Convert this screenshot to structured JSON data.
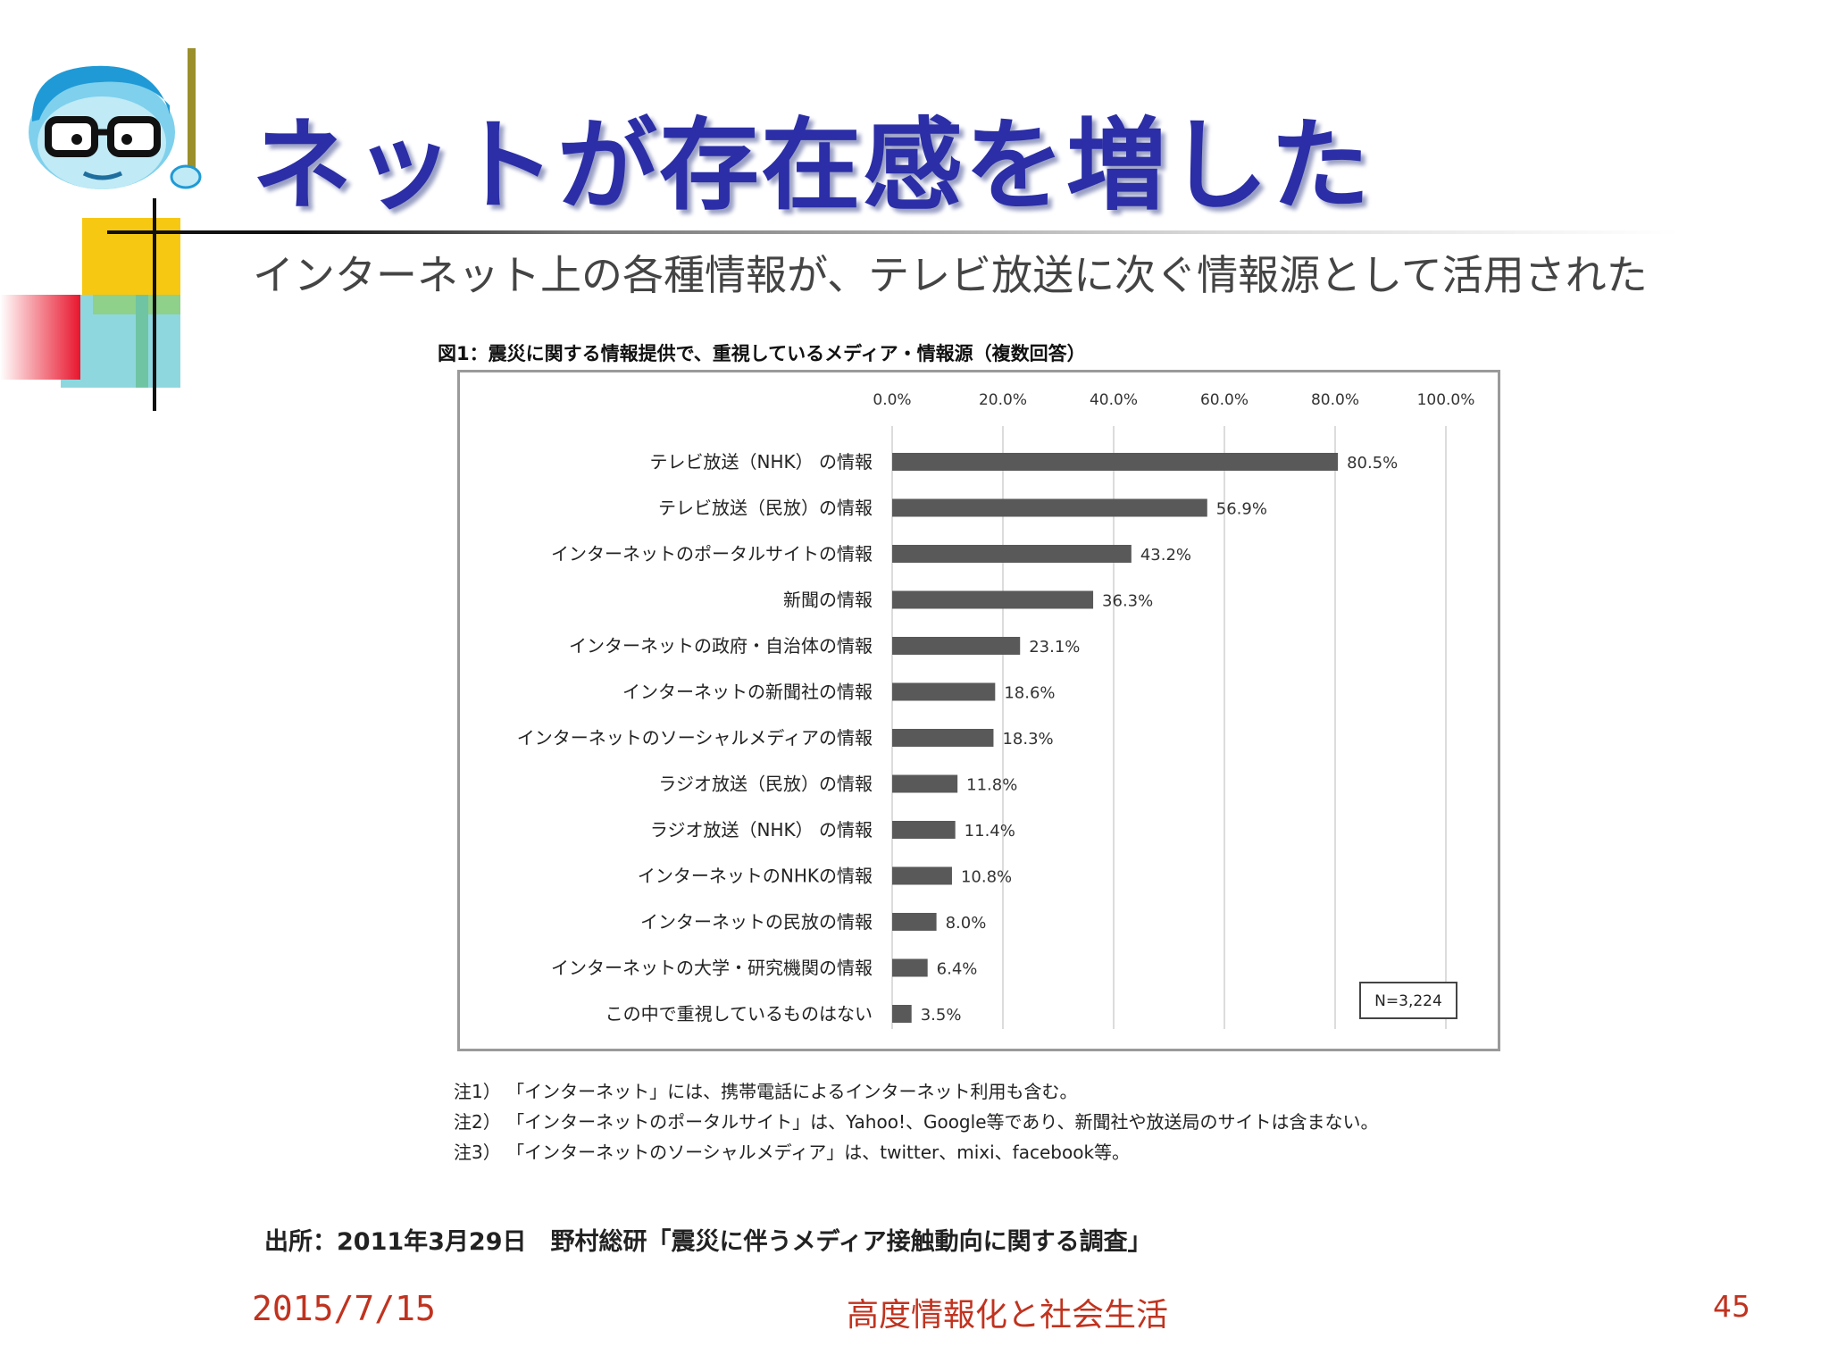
{
  "slide": {
    "title": "ネットが存在感を増した",
    "subtitle": "インターネット上の各種情報が、テレビ放送に次ぐ情報源として活用された"
  },
  "chart_title": "図1：震災に関する情報提供で、重視しているメディア・情報源（複数回答）",
  "chart_data": {
    "type": "bar",
    "orientation": "horizontal",
    "title": "図1：震災に関する情報提供で、重視しているメディア・情報源（複数回答）",
    "categories": [
      "テレビ放送（NHK） の情報",
      "テレビ放送（民放）の情報",
      "インターネットのポータルサイトの情報",
      "新聞の情報",
      "インターネットの政府・自治体の情報",
      "インターネットの新聞社の情報",
      "インターネットのソーシャルメディアの情報",
      "ラジオ放送（民放）の情報",
      "ラジオ放送（NHK） の情報",
      "インターネットのNHKの情報",
      "インターネットの民放の情報",
      "インターネットの大学・研究機関の情報",
      "この中で重視しているものはない"
    ],
    "values": [
      80.5,
      56.9,
      43.2,
      36.3,
      23.1,
      18.6,
      18.3,
      11.8,
      11.4,
      10.8,
      8.0,
      6.4,
      3.5
    ],
    "value_labels": [
      "80.5%",
      "56.9%",
      "43.2%",
      "36.3%",
      "23.1%",
      "18.6%",
      "18.3%",
      "11.8%",
      "11.4%",
      "10.8%",
      "8.0%",
      "6.4%",
      "3.5%"
    ],
    "xlim": [
      0,
      100
    ],
    "ticks": [
      "0.0%",
      "20.0%",
      "40.0%",
      "60.0%",
      "80.0%",
      "100.0%"
    ],
    "axis_position": "top",
    "grid": true,
    "bar_color": "#595959",
    "annotation": "N=3,224"
  },
  "notes": [
    "注1） 「インターネット」には、携帯電話によるインターネット利用も含む。",
    "注2） 「インターネットのポータルサイト」は、Yahoo!、Google等であり、新聞社や放送局のサイトは含まない。",
    "注3） 「インターネットのソーシャルメディア」は、twitter、mixi、facebook等。"
  ],
  "source": "出所：2011年3月29日　野村総研「震災に伴うメディア接触動向に関する調査」",
  "footer": {
    "date": "2015/7/15",
    "center": "高度情報化と社会生活",
    "page": "45"
  },
  "colors": {
    "title": "#2b2ea6",
    "footer": "#c0331f",
    "deco_yellow": "#f7c812",
    "deco_cyan": "#8fd7df",
    "deco_red": "#e8162e"
  }
}
